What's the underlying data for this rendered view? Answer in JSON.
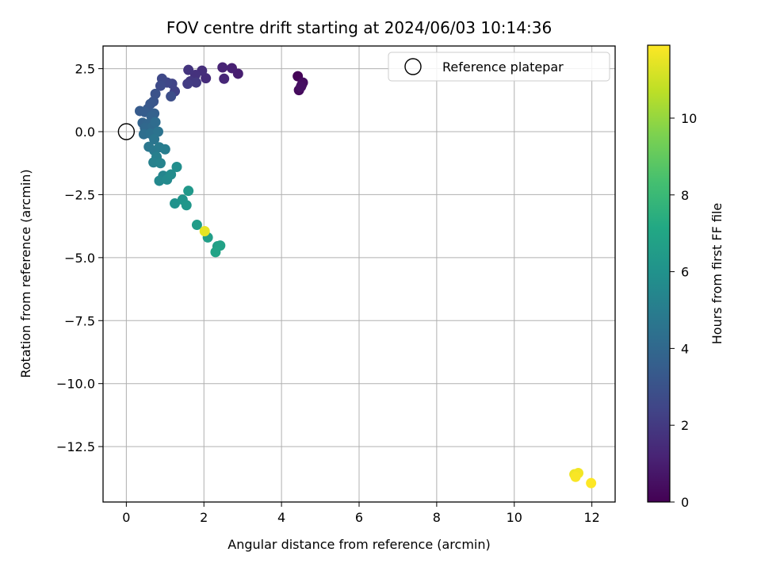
{
  "chart_data": {
    "type": "scatter",
    "title": "FOV centre drift starting at 2024/06/03 10:14:36",
    "xlabel": "Angular distance from reference (arcmin)",
    "ylabel": "Rotation from reference (arcmin)",
    "xlim": [
      -0.6,
      12.6
    ],
    "ylim": [
      -14.7,
      3.4
    ],
    "xticks": [
      0,
      2,
      4,
      6,
      8,
      10,
      12
    ],
    "xtick_labels": [
      "0",
      "2",
      "4",
      "6",
      "8",
      "10",
      "12"
    ],
    "yticks": [
      2.5,
      0.0,
      -2.5,
      -5.0,
      -7.5,
      -10.0,
      -12.5
    ],
    "ytick_labels": [
      "2.5",
      "0.0",
      "−2.5",
      "−5.0",
      "−7.5",
      "−10.0",
      "−12.5"
    ],
    "grid": true,
    "legend": {
      "placement": "upper right",
      "entries": [
        "Reference platepar"
      ]
    },
    "reference_point": {
      "x": 0.0,
      "y": 0.0
    },
    "colorbar": {
      "label": "Hours from first FF file",
      "colormap": "viridis",
      "range": [
        0,
        11.9
      ],
      "ticks": [
        0,
        2,
        4,
        6,
        8,
        10
      ],
      "tick_labels": [
        "0",
        "2",
        "4",
        "6",
        "8",
        "10"
      ]
    },
    "series": [
      {
        "values": [
          {
            "x": 4.42,
            "y": 2.2,
            "hours": 0.1
          },
          {
            "x": 4.52,
            "y": 1.85,
            "hours": 0.2
          },
          {
            "x": 4.45,
            "y": 1.65,
            "hours": 0.3
          },
          {
            "x": 4.55,
            "y": 1.95,
            "hours": 0.4
          },
          {
            "x": 4.5,
            "y": 1.78,
            "hours": 0.5
          },
          {
            "x": 2.88,
            "y": 2.3,
            "hours": 1.0
          },
          {
            "x": 2.72,
            "y": 2.52,
            "hours": 1.1
          },
          {
            "x": 2.48,
            "y": 2.55,
            "hours": 1.2
          },
          {
            "x": 2.52,
            "y": 2.1,
            "hours": 1.3
          },
          {
            "x": 2.05,
            "y": 2.12,
            "hours": 1.5
          },
          {
            "x": 1.95,
            "y": 2.42,
            "hours": 1.6
          },
          {
            "x": 1.78,
            "y": 2.25,
            "hours": 1.7
          },
          {
            "x": 1.6,
            "y": 2.45,
            "hours": 1.8
          },
          {
            "x": 1.65,
            "y": 2.0,
            "hours": 1.9
          },
          {
            "x": 1.8,
            "y": 1.95,
            "hours": 2.0
          },
          {
            "x": 1.58,
            "y": 1.9,
            "hours": 2.1
          },
          {
            "x": 1.25,
            "y": 1.6,
            "hours": 2.3
          },
          {
            "x": 1.18,
            "y": 1.9,
            "hours": 2.4
          },
          {
            "x": 1.05,
            "y": 1.95,
            "hours": 2.5
          },
          {
            "x": 0.92,
            "y": 2.1,
            "hours": 2.6
          },
          {
            "x": 0.88,
            "y": 1.82,
            "hours": 2.7
          },
          {
            "x": 1.15,
            "y": 1.4,
            "hours": 2.8
          },
          {
            "x": 0.75,
            "y": 1.5,
            "hours": 3.0
          },
          {
            "x": 0.7,
            "y": 1.2,
            "hours": 3.1
          },
          {
            "x": 0.62,
            "y": 1.1,
            "hours": 3.2
          },
          {
            "x": 0.55,
            "y": 0.9,
            "hours": 3.3
          },
          {
            "x": 0.35,
            "y": 0.82,
            "hours": 3.4
          },
          {
            "x": 0.48,
            "y": 0.78,
            "hours": 3.5
          },
          {
            "x": 0.72,
            "y": 0.72,
            "hours": 3.6
          },
          {
            "x": 0.65,
            "y": 0.6,
            "hours": 3.7
          },
          {
            "x": 0.42,
            "y": 0.35,
            "hours": 3.8
          },
          {
            "x": 0.55,
            "y": 0.3,
            "hours": 3.9
          },
          {
            "x": 0.48,
            "y": 0.15,
            "hours": 4.0
          },
          {
            "x": 0.68,
            "y": 0.2,
            "hours": 4.1
          },
          {
            "x": 0.75,
            "y": 0.38,
            "hours": 4.2
          },
          {
            "x": 0.45,
            "y": -0.1,
            "hours": 4.3
          },
          {
            "x": 0.62,
            "y": -0.08,
            "hours": 4.4
          },
          {
            "x": 0.82,
            "y": 0.0,
            "hours": 4.5
          },
          {
            "x": 0.72,
            "y": -0.3,
            "hours": 4.6
          },
          {
            "x": 0.58,
            "y": -0.6,
            "hours": 4.7
          },
          {
            "x": 0.72,
            "y": -0.75,
            "hours": 4.8
          },
          {
            "x": 0.85,
            "y": -0.62,
            "hours": 4.9
          },
          {
            "x": 1.0,
            "y": -0.7,
            "hours": 5.0
          },
          {
            "x": 0.78,
            "y": -1.0,
            "hours": 5.1
          },
          {
            "x": 0.7,
            "y": -1.22,
            "hours": 5.2
          },
          {
            "x": 0.88,
            "y": -1.25,
            "hours": 5.3
          },
          {
            "x": 0.95,
            "y": -1.75,
            "hours": 5.4
          },
          {
            "x": 0.85,
            "y": -1.95,
            "hours": 5.5
          },
          {
            "x": 1.05,
            "y": -1.9,
            "hours": 5.6
          },
          {
            "x": 1.15,
            "y": -1.7,
            "hours": 5.7
          },
          {
            "x": 1.3,
            "y": -1.4,
            "hours": 5.8
          },
          {
            "x": 1.25,
            "y": -2.85,
            "hours": 6.0
          },
          {
            "x": 1.45,
            "y": -2.7,
            "hours": 6.1
          },
          {
            "x": 1.55,
            "y": -2.92,
            "hours": 6.2
          },
          {
            "x": 1.6,
            "y": -2.35,
            "hours": 6.3
          },
          {
            "x": 1.82,
            "y": -3.7,
            "hours": 6.5
          },
          {
            "x": 2.1,
            "y": -4.2,
            "hours": 6.6
          },
          {
            "x": 2.35,
            "y": -4.55,
            "hours": 6.7
          },
          {
            "x": 2.42,
            "y": -4.52,
            "hours": 6.8
          },
          {
            "x": 2.3,
            "y": -4.78,
            "hours": 6.9
          },
          {
            "x": 2.02,
            "y": -3.95,
            "hours": 11.5
          },
          {
            "x": 11.55,
            "y": -13.6,
            "hours": 11.6
          },
          {
            "x": 11.65,
            "y": -13.55,
            "hours": 11.7
          },
          {
            "x": 11.58,
            "y": -13.7,
            "hours": 11.8
          },
          {
            "x": 11.98,
            "y": -13.95,
            "hours": 11.9
          }
        ]
      }
    ]
  }
}
